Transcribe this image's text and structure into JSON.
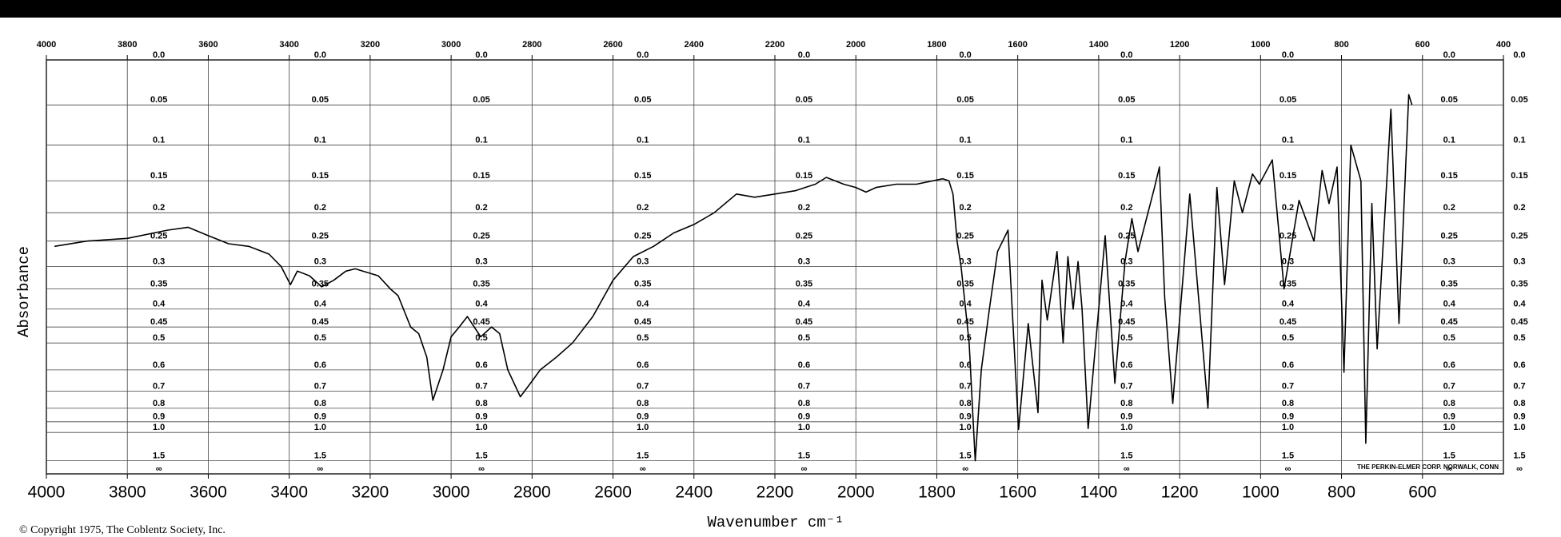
{
  "chart_data": {
    "type": "line",
    "y_label": "Absorbance",
    "x_label": "Wavenumber cm⁻¹",
    "copyright": "© Copyright 1975, The Coblentz Society, Inc.",
    "maker": "THE PERKIN-ELMER CORP. NORWALK, CONN",
    "color": "#000000",
    "grid": true,
    "y_scale": "absorbance",
    "xlim": [
      4000,
      400
    ],
    "xticks": [
      4000,
      3800,
      3600,
      3400,
      3200,
      3000,
      2800,
      2600,
      2400,
      2200,
      2000,
      1800,
      1600,
      1400,
      1200,
      1000,
      800,
      600
    ],
    "x2ticks": [
      4000,
      3800,
      3600,
      3400,
      3200,
      3000,
      2800,
      2600,
      2400,
      2200,
      2000,
      1800,
      1600,
      1400,
      1200,
      1000,
      800,
      600,
      400
    ],
    "ylim": [
      0,
      null
    ],
    "yticks": [
      {
        "value": 0,
        "label": "0.0"
      },
      0.05,
      0.1,
      0.15,
      0.2,
      0.25,
      0.3,
      0.35,
      0.4,
      0.45,
      0.5,
      0.6,
      0.7,
      0.8,
      0.9,
      {
        "value": 1,
        "label": "1.0"
      },
      1.5,
      {
        "value": null,
        "label": "∞"
      }
    ],
    "x": [
      3980,
      3900,
      3800,
      3700,
      3650,
      3600,
      3550,
      3500,
      3450,
      3420,
      3397,
      3380,
      3350,
      3320,
      3290,
      3260,
      3237,
      3180,
      3150,
      3131,
      3100,
      3080,
      3060,
      3045,
      3020,
      3000,
      2980,
      2960,
      2927,
      2900,
      2880,
      2860,
      2829,
      2800,
      2780,
      2740,
      2700,
      2650,
      2600,
      2550,
      2500,
      2450,
      2400,
      2350,
      2295,
      2250,
      2200,
      2150,
      2100,
      2073,
      2030,
      2000,
      1975,
      1950,
      1900,
      1850,
      1785,
      1770,
      1760,
      1750,
      1740,
      1720,
      1705,
      1690,
      1670,
      1650,
      1624,
      1598,
      1574,
      1550,
      1540,
      1527,
      1503,
      1488,
      1476,
      1463,
      1451,
      1441,
      1426,
      1384,
      1360,
      1335,
      1318,
      1303,
      1262,
      1250,
      1237,
      1217,
      1175,
      1150,
      1130,
      1108,
      1089,
      1065,
      1045,
      1020,
      1003,
      971,
      942,
      905,
      868,
      848,
      831,
      811,
      794,
      777,
      752,
      740,
      725,
      712,
      678,
      658,
      634,
      626
    ],
    "values": [
      0.26,
      0.25,
      0.245,
      0.23,
      0.225,
      0.24,
      0.255,
      0.26,
      0.275,
      0.3,
      0.34,
      0.31,
      0.32,
      0.345,
      0.33,
      0.31,
      0.305,
      0.32,
      0.35,
      0.366,
      0.45,
      0.47,
      0.55,
      0.75,
      0.6,
      0.48,
      0.45,
      0.42,
      0.48,
      0.45,
      0.47,
      0.6,
      0.73,
      0.65,
      0.6,
      0.55,
      0.5,
      0.42,
      0.33,
      0.28,
      0.26,
      0.235,
      0.22,
      0.2,
      0.17,
      0.175,
      0.17,
      0.165,
      0.155,
      0.145,
      0.155,
      0.16,
      0.167,
      0.16,
      0.155,
      0.155,
      0.147,
      0.15,
      0.17,
      0.25,
      0.3,
      0.5,
      1.5,
      0.6,
      0.4,
      0.27,
      0.23,
      0.97,
      0.44,
      0.83,
      0.33,
      0.43,
      0.27,
      0.5,
      0.28,
      0.4,
      0.29,
      0.4,
      0.96,
      0.24,
      0.66,
      0.29,
      0.21,
      0.27,
      0.16,
      0.13,
      0.37,
      0.77,
      0.17,
      0.41,
      0.8,
      0.16,
      0.34,
      0.15,
      0.2,
      0.14,
      0.155,
      0.12,
      0.35,
      0.18,
      0.25,
      0.135,
      0.185,
      0.13,
      0.61,
      0.1,
      0.15,
      1.13,
      0.185,
      0.52,
      0.055,
      0.44,
      0.038,
      0.05
    ]
  }
}
